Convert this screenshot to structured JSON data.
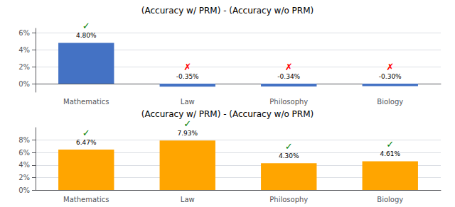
{
  "chart_data": [
    {
      "type": "bar",
      "title": "(Accuracy w/ PRM) - (Accuracy w/o PRM)",
      "categories": [
        "Mathematics",
        "Law",
        "Philosophy",
        "Biology"
      ],
      "values": [
        4.8,
        -0.35,
        -0.34,
        -0.3
      ],
      "value_labels": [
        "4.80%",
        "-0.35%",
        "-0.34%",
        "-0.30%"
      ],
      "annotations": [
        "✓",
        "✗",
        "✗",
        "✗"
      ],
      "color": "#4472C4",
      "ylim": [
        -1,
        6.5
      ],
      "yticks": [
        {
          "value": 0,
          "label": "0%"
        },
        {
          "value": 2,
          "label": "2%"
        },
        {
          "value": 4,
          "label": "4%"
        },
        {
          "value": 6,
          "label": "6%"
        }
      ],
      "grid": true,
      "data_labels": true
    },
    {
      "type": "bar",
      "title": "(Accuracy w/ PRM) - (Accuracy w/o PRM)",
      "categories": [
        "Mathematics",
        "Law",
        "Philosophy",
        "Biology"
      ],
      "values": [
        6.47,
        7.93,
        4.3,
        4.61
      ],
      "value_labels": [
        "6.47%",
        "7.93%",
        "4.30%",
        "4.61%"
      ],
      "annotations": [
        "✓",
        "✓",
        "✓",
        "✓"
      ],
      "color": "#FFA500",
      "ylim": [
        0,
        10
      ],
      "yticks": [
        {
          "value": 0,
          "label": "0%"
        },
        {
          "value": 2,
          "label": "2%"
        },
        {
          "value": 4,
          "label": "4%"
        },
        {
          "value": 6,
          "label": "6%"
        },
        {
          "value": 8,
          "label": "8%"
        }
      ],
      "grid": true,
      "data_labels": true
    }
  ]
}
